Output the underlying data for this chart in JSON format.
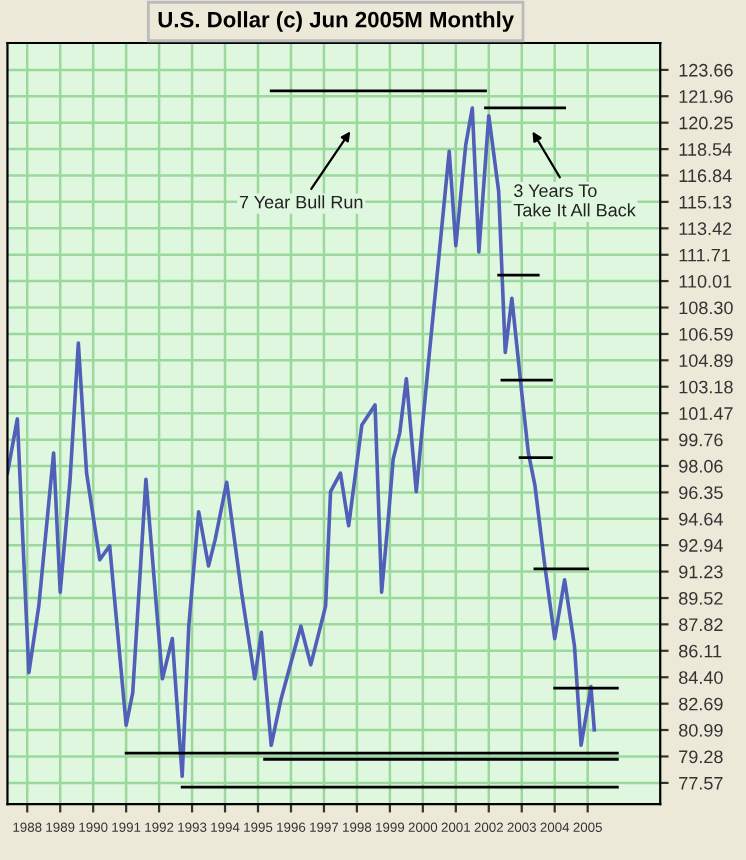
{
  "chart_data": {
    "type": "line",
    "title": "U.S. Dollar (c) Jun 2005M Monthly",
    "xlim": [
      1987.4,
      2007.2
    ],
    "xticks": [
      1988,
      1989,
      1990,
      1991,
      1992,
      1993,
      1994,
      1995,
      1996,
      1997,
      1998,
      1999,
      2000,
      2001,
      2002,
      2003,
      2004,
      2005
    ],
    "ylim": [
      76.2,
      125.4
    ],
    "yticks": [
      77.57,
      79.28,
      80.99,
      82.69,
      {
        "value": 84.4,
        "label": "84.40"
      },
      86.11,
      87.82,
      89.52,
      91.23,
      92.94,
      94.64,
      96.35,
      98.06,
      99.76,
      101.47,
      103.18,
      104.89,
      106.59,
      {
        "value": 108.3,
        "label": "108.30"
      },
      110.01,
      111.71,
      113.42,
      115.13,
      116.84,
      118.54,
      120.25,
      121.96,
      123.66
    ],
    "grid": true,
    "series": [
      {
        "color": "#5060b8",
        "x": [
          1987.4,
          1987.7,
          1988.05,
          1988.35,
          1988.8,
          1989.0,
          1989.3,
          1989.55,
          1989.8,
          1990.2,
          1990.5,
          1991.0,
          1991.2,
          1991.6,
          1992.1,
          1992.4,
          1992.7,
          1992.9,
          1993.2,
          1993.5,
          1993.7,
          1994.05,
          1994.5,
          1994.9,
          1995.1,
          1995.4,
          1995.7,
          1996.3,
          1996.6,
          1997.05,
          1997.2,
          1997.5,
          1997.75,
          1998.15,
          1998.55,
          1998.75,
          1998.95,
          1999.1,
          1999.3,
          1999.5,
          1999.8,
          2000.2,
          2000.4,
          2000.8,
          2001.0,
          2001.3,
          2001.5,
          2001.7,
          2002.0,
          2002.3,
          2002.5,
          2002.7,
          2003.0,
          2003.2,
          2003.4,
          2003.7,
          2004.0,
          2004.3,
          2004.6,
          2004.8,
          2005.1,
          2005.2
        ],
        "values": [
          97.6,
          101.1,
          84.7,
          89.0,
          98.9,
          89.9,
          97.2,
          106.0,
          97.6,
          92.0,
          92.9,
          81.3,
          83.4,
          97.2,
          84.3,
          86.9,
          78.0,
          87.7,
          95.1,
          91.6,
          93.3,
          97.0,
          89.9,
          84.3,
          87.3,
          80.0,
          83.0,
          87.7,
          85.2,
          89.0,
          96.4,
          97.6,
          94.2,
          100.7,
          102.0,
          89.9,
          94.6,
          98.5,
          100.2,
          103.7,
          96.4,
          105.4,
          109.7,
          118.4,
          112.3,
          118.8,
          121.2,
          111.9,
          120.7,
          115.8,
          105.4,
          108.9,
          102.8,
          98.9,
          96.8,
          91.6,
          86.9,
          90.7,
          86.4,
          80.0,
          83.8,
          81.0
        ]
      },
      {
        "color": "#000000",
        "x": [
          1995.4,
          2001.9
        ],
        "values": [
          122.3,
          122.3
        ]
      },
      {
        "color": "#000000",
        "x": [
          2001.9,
          2004.3
        ],
        "values": [
          121.2,
          121.2
        ]
      },
      {
        "color": "#000000",
        "x": [
          2002.3,
          2003.5
        ],
        "values": [
          110.4,
          110.4
        ]
      },
      {
        "color": "#000000",
        "x": [
          2002.4,
          2003.9
        ],
        "values": [
          103.6,
          103.6
        ]
      },
      {
        "color": "#000000",
        "x": [
          2002.95,
          2003.9
        ],
        "values": [
          98.6,
          98.6
        ]
      },
      {
        "color": "#000000",
        "x": [
          2003.4,
          2005.0
        ],
        "values": [
          91.4,
          91.4
        ]
      },
      {
        "color": "#000000",
        "x": [
          2004.0,
          2005.9
        ],
        "values": [
          83.7,
          83.7
        ]
      },
      {
        "color": "#000000",
        "x": [
          1991.0,
          2005.9
        ],
        "values": [
          79.5,
          79.5
        ]
      },
      {
        "color": "#000000",
        "x": [
          1995.2,
          2005.9
        ],
        "values": [
          79.1,
          79.1
        ]
      },
      {
        "color": "#000000",
        "x": [
          1992.7,
          2005.9
        ],
        "values": [
          77.3,
          77.3
        ]
      }
    ],
    "annotations": [
      "7 Year Bull Run",
      "3 Years To\nTake It All Back"
    ]
  }
}
